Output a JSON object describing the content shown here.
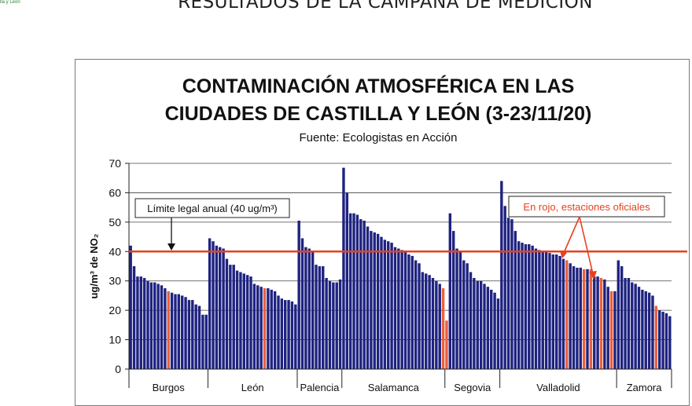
{
  "slide": {
    "logo_text": "lla y León",
    "title": "RESULTADOS DE LA CAMPAÑA DE MEDICIÓN"
  },
  "chart_data": {
    "type": "bar",
    "title_line1": "CONTAMINACIÓN ATMOSFÉRICA EN LAS",
    "title_line2": "CIUDADES DE CASTILLA Y LEÓN (3-23/11/20)",
    "subtitle": "Fuente: Ecologistas en Acción",
    "ylabel": "ug/m³ de NO₂",
    "ylim": [
      0,
      70
    ],
    "yticks": [
      0,
      10,
      20,
      30,
      40,
      50,
      60,
      70
    ],
    "grid": true,
    "limit_line": {
      "value": 40,
      "color": "#e8401c"
    },
    "annotations": {
      "legal_limit": "Límite legal anual (40 ug/m³)",
      "official": "En rojo, estaciones oficiales"
    },
    "colors": {
      "bar": "#1f2380",
      "official": "#e8603c",
      "limit": "#e8401c"
    },
    "groups": [
      {
        "name": "Burgos",
        "values": [
          42,
          35,
          31.5,
          31.5,
          31,
          30,
          29.5,
          29.5,
          29,
          28.5,
          27.5,
          26.5,
          26,
          25.5,
          25.5,
          25,
          24.5,
          23.5,
          23.5,
          22,
          21.5,
          18.5,
          18.5
        ],
        "official": [
          11
        ]
      },
      {
        "name": "León",
        "values": [
          44.5,
          43.5,
          42,
          41.5,
          41,
          37.5,
          35.5,
          35.5,
          33.5,
          33,
          32.5,
          32,
          31.5,
          29,
          28.5,
          28,
          27.5,
          27.5,
          27,
          26.5,
          25,
          24,
          23.5,
          23.5,
          23,
          22
        ],
        "official": [
          16
        ]
      },
      {
        "name": "Palencia",
        "values": [
          50.5,
          44.5,
          41.5,
          41,
          40,
          35.5,
          35,
          35,
          31,
          30,
          29.5,
          29.5,
          30.5
        ],
        "official": []
      },
      {
        "name": "Salamanca",
        "values": [
          68.5,
          60,
          53,
          53,
          52.5,
          51,
          50.5,
          48.5,
          47,
          46.5,
          46,
          45,
          44,
          43.5,
          43,
          41.5,
          41,
          40.5,
          40,
          39,
          38.5,
          37,
          36,
          33,
          32.5,
          32,
          31,
          30,
          29,
          27.5
        ],
        "official": [
          29
        ]
      },
      {
        "name": "Segovia",
        "values": [
          16.5,
          53,
          47,
          41,
          40,
          37,
          36,
          33,
          31,
          30,
          30,
          29,
          28,
          27,
          26,
          24
        ],
        "official": [
          0
        ]
      },
      {
        "name": "Valladolid",
        "values": [
          64,
          55.5,
          51.5,
          51,
          47,
          43.5,
          43,
          42.5,
          42.5,
          42,
          41,
          40.5,
          40,
          40,
          39.5,
          39,
          39,
          38.5,
          37.5,
          37,
          36,
          35,
          34.5,
          34.5,
          34,
          34,
          34,
          31.5,
          31.5,
          31,
          30.5,
          28,
          26.5,
          26.5
        ],
        "official": [
          19,
          24,
          26,
          29,
          32
        ]
      },
      {
        "name": "Zamora",
        "values": [
          37,
          35,
          31,
          31,
          29.5,
          29,
          28,
          27,
          26.5,
          26,
          25,
          21.5,
          20,
          19.5,
          19,
          18
        ],
        "official": [
          11
        ]
      }
    ]
  }
}
